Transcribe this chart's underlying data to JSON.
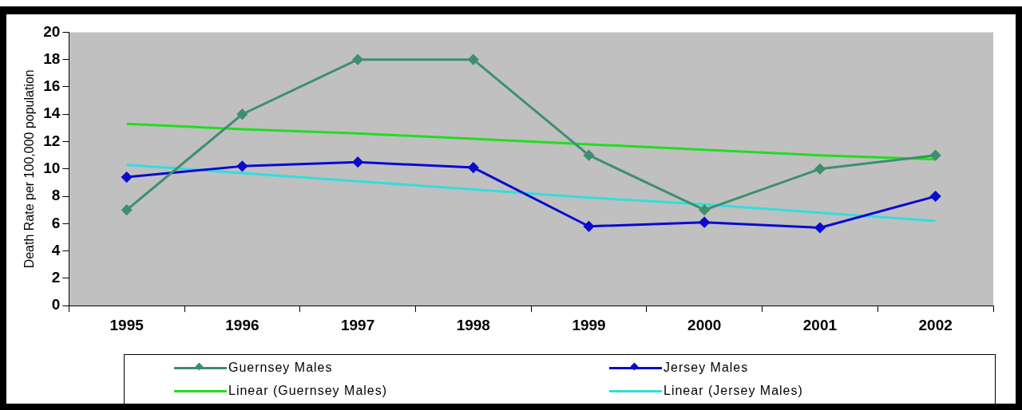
{
  "chart_data": {
    "type": "line",
    "ylabel": "Death Rate per 100,000 population",
    "categories": [
      "1995",
      "1996",
      "1997",
      "1998",
      "1999",
      "2000",
      "2001",
      "2002"
    ],
    "series": [
      {
        "name": "Guernsey Males",
        "color": "#3d8f6e",
        "marker": "diamond",
        "values": [
          7,
          14,
          18,
          18,
          11,
          7,
          10,
          11
        ]
      },
      {
        "name": "Jersey Males",
        "color": "#0a0ad0",
        "marker": "diamond",
        "values": [
          9.4,
          10.2,
          10.5,
          10.1,
          5.8,
          6.1,
          5.7,
          8
        ]
      },
      {
        "name": "Linear (Guernsey Males)",
        "color": "#22dd22",
        "marker": "none",
        "values": [
          13.3,
          12.9,
          12.6,
          12.2,
          11.8,
          11.4,
          11.0,
          10.7
        ]
      },
      {
        "name": "Linear (Jersey Males)",
        "color": "#33dddd",
        "marker": "none",
        "values": [
          10.3,
          9.7,
          9.1,
          8.5,
          7.9,
          7.4,
          6.8,
          6.2
        ]
      }
    ],
    "ylim": [
      0,
      20
    ],
    "yticks": [
      0,
      2,
      4,
      6,
      8,
      10,
      12,
      14,
      16,
      18,
      20
    ],
    "grid": false,
    "legend": "bottom",
    "line_style": "solid"
  }
}
